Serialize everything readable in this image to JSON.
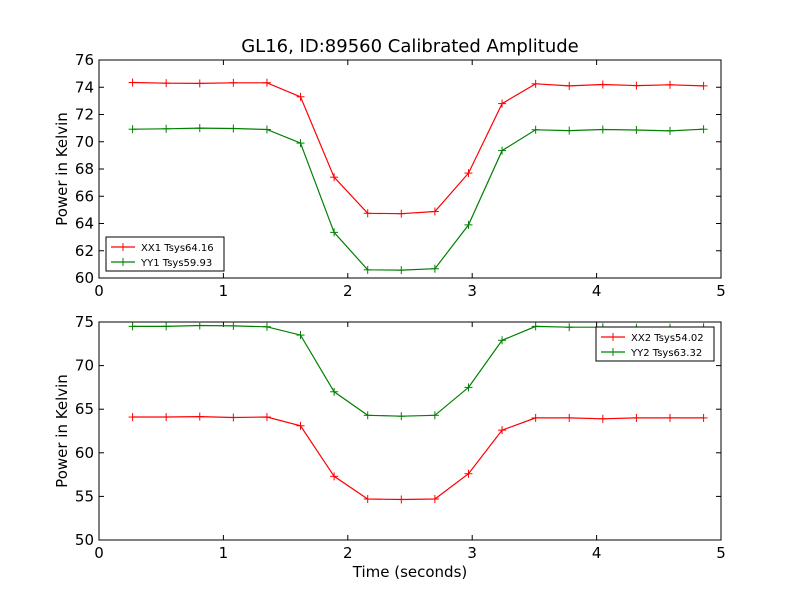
{
  "title": "GL16, ID:89560 Calibrated Amplitude",
  "chart_data": [
    {
      "type": "line",
      "ylabel": "Power in Kelvin",
      "xlabel": "",
      "xlim": [
        0,
        5
      ],
      "ylim": [
        60,
        76
      ],
      "xticks": [
        0,
        1,
        2,
        3,
        4,
        5
      ],
      "yticks": [
        60,
        62,
        64,
        66,
        68,
        70,
        72,
        74,
        76
      ],
      "legend_position": "lower-left",
      "grid": false,
      "x": [
        0.27,
        0.54,
        0.81,
        1.08,
        1.35,
        1.62,
        1.89,
        2.16,
        2.43,
        2.7,
        2.97,
        3.24,
        3.51,
        3.78,
        4.05,
        4.32,
        4.59,
        4.86
      ],
      "series": [
        {
          "name": "XX1 Tsys64.16",
          "color": "#ff0000",
          "values": [
            74.35,
            74.3,
            74.28,
            74.33,
            74.33,
            73.3,
            67.4,
            64.75,
            64.72,
            64.88,
            67.7,
            72.8,
            74.25,
            74.1,
            74.2,
            74.12,
            74.18,
            74.1
          ]
        },
        {
          "name": "YY1 Tsys59.93",
          "color": "#008000",
          "values": [
            70.92,
            70.95,
            71.0,
            70.97,
            70.9,
            69.9,
            63.35,
            60.6,
            60.58,
            60.68,
            63.9,
            69.35,
            70.88,
            70.82,
            70.9,
            70.86,
            70.8,
            70.92
          ]
        }
      ]
    },
    {
      "type": "line",
      "ylabel": "Power in Kelvin",
      "xlabel": "Time (seconds)",
      "xlim": [
        0,
        5
      ],
      "ylim": [
        50,
        75
      ],
      "xticks": [
        0,
        1,
        2,
        3,
        4,
        5
      ],
      "yticks": [
        50,
        55,
        60,
        65,
        70,
        75
      ],
      "legend_position": "upper-right",
      "grid": false,
      "x": [
        0.27,
        0.54,
        0.81,
        1.08,
        1.35,
        1.62,
        1.89,
        2.16,
        2.43,
        2.7,
        2.97,
        3.24,
        3.51,
        3.78,
        4.05,
        4.32,
        4.59,
        4.86
      ],
      "series": [
        {
          "name": "XX2 Tsys54.02",
          "color": "#ff0000",
          "values": [
            64.1,
            64.1,
            64.15,
            64.05,
            64.1,
            63.1,
            57.3,
            54.7,
            54.65,
            54.7,
            57.6,
            62.6,
            64.0,
            64.0,
            63.9,
            64.0,
            64.0,
            64.0
          ]
        },
        {
          "name": "YY2 Tsys63.32",
          "color": "#008000",
          "values": [
            74.5,
            74.5,
            74.6,
            74.55,
            74.45,
            73.5,
            67.0,
            64.3,
            64.2,
            64.3,
            67.5,
            72.9,
            74.5,
            74.4,
            74.4,
            74.35,
            74.35,
            74.4
          ]
        }
      ]
    }
  ]
}
